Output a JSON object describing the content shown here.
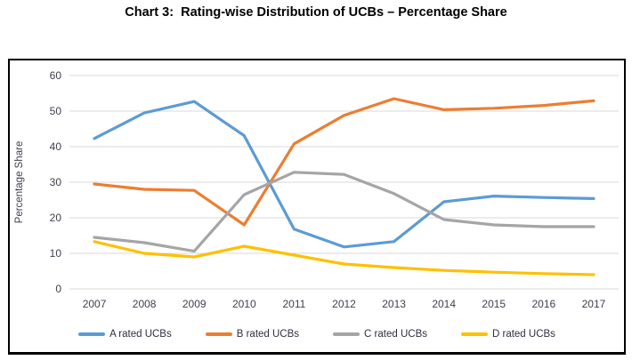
{
  "title": "Chart 3:  Rating-wise Distribution of UCBs – Percentage Share",
  "colors": {
    "grid": "#d9d9d9",
    "axis_text": "#3f3f4c",
    "frame_border": "#000000"
  },
  "chart_data": {
    "type": "line",
    "title": "Chart 3:  Rating-wise Distribution of UCBs – Percentage Share",
    "x": [
      2007,
      2008,
      2009,
      2010,
      2011,
      2012,
      2013,
      2014,
      2015,
      2016,
      2017
    ],
    "series": [
      {
        "name": "A rated UCBs",
        "color": "#5B9BD5",
        "values": [
          42.3,
          49.5,
          52.7,
          43.1,
          16.8,
          11.8,
          13.3,
          24.5,
          26.1,
          25.7,
          25.4
        ]
      },
      {
        "name": "B rated UCBs",
        "color": "#ED7D31",
        "values": [
          29.5,
          28.0,
          27.7,
          18.0,
          40.8,
          48.8,
          53.5,
          50.4,
          50.8,
          51.6,
          52.9
        ]
      },
      {
        "name": "C rated UCBs",
        "color": "#A5A5A5",
        "values": [
          14.5,
          13.0,
          10.6,
          26.5,
          32.8,
          32.2,
          26.8,
          19.5,
          18.0,
          17.5,
          17.5
        ]
      },
      {
        "name": "D rated UCBs",
        "color": "#FFC000",
        "values": [
          13.3,
          10.0,
          9.0,
          12.0,
          9.5,
          7.0,
          6.0,
          5.2,
          4.7,
          4.3,
          4.0
        ]
      }
    ],
    "xlabel": "",
    "ylabel": "Percentage Share",
    "ylim": [
      0,
      60
    ],
    "yticks": [
      0,
      10,
      20,
      30,
      40,
      50,
      60
    ],
    "grid": true,
    "legend_position": "bottom"
  }
}
